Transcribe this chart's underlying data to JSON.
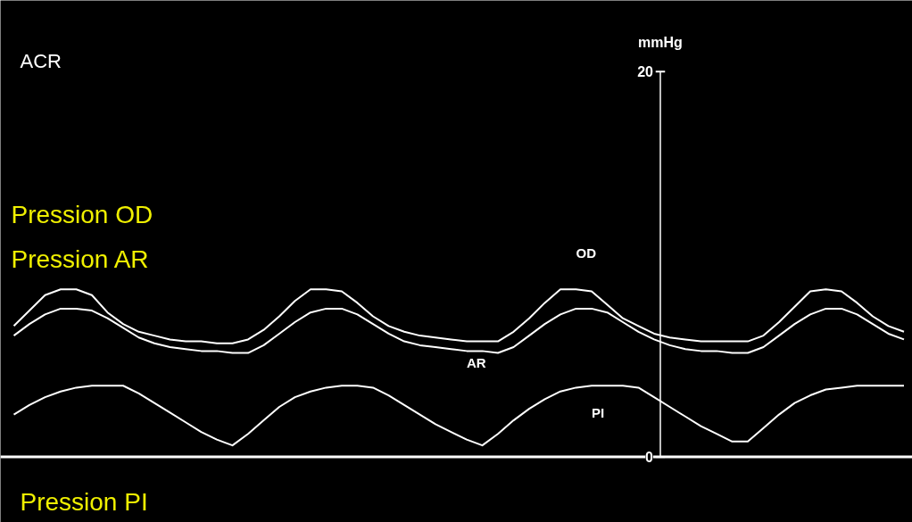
{
  "chart_data": {
    "type": "line",
    "ylabel": "mmHg",
    "categories": [
      null,
      null,
      null,
      null,
      null,
      null,
      null,
      null,
      null,
      null,
      null,
      null,
      null,
      null,
      null,
      null,
      null,
      null,
      null,
      null,
      null,
      null,
      null,
      null,
      null,
      null,
      null,
      null,
      null,
      null,
      null,
      null,
      null,
      null,
      null,
      null,
      null,
      null,
      null,
      null,
      null,
      null,
      null,
      null,
      null,
      null,
      null,
      null,
      null,
      null,
      null,
      null,
      null,
      null,
      null,
      null,
      null,
      null
    ],
    "ylim": [
      -3.4,
      23.7
    ],
    "yticks": [
      0,
      20
    ],
    "grid": false,
    "ref_lines": [
      {
        "axis": "y",
        "value": 0,
        "color": "#ffffff"
      }
    ],
    "annotations": [
      "ACR",
      "Pression OD",
      "Pression AR",
      "Pression PI"
    ],
    "series": [
      {
        "name": "OD",
        "color": "#ffffff",
        "values": [
          6.8,
          7.6,
          8.4,
          8.7,
          8.7,
          8.4,
          7.5,
          6.9,
          6.5,
          6.3,
          6.1,
          6.0,
          6.0,
          5.9,
          5.9,
          6.1,
          6.6,
          7.3,
          8.1,
          8.7,
          8.7,
          8.6,
          8.0,
          7.3,
          6.8,
          6.5,
          6.3,
          6.2,
          6.1,
          6.0,
          6.0,
          6.0,
          6.5,
          7.2,
          8.0,
          8.7,
          8.7,
          8.6,
          7.9,
          7.2,
          6.8,
          6.4,
          6.2,
          6.1,
          6.0,
          6.0,
          6.0,
          6.0,
          6.3,
          7.0,
          7.8,
          8.6,
          8.7,
          8.6,
          8.0,
          7.3,
          6.8,
          6.5
        ]
      },
      {
        "name": "AR",
        "color": "#ffffff",
        "values": [
          6.3,
          6.9,
          7.4,
          7.7,
          7.7,
          7.6,
          7.2,
          6.7,
          6.2,
          5.9,
          5.7,
          5.6,
          5.5,
          5.5,
          5.4,
          5.4,
          5.8,
          6.4,
          7.0,
          7.5,
          7.7,
          7.7,
          7.4,
          6.9,
          6.4,
          6.0,
          5.8,
          5.7,
          5.6,
          5.5,
          5.5,
          5.4,
          5.7,
          6.3,
          6.9,
          7.4,
          7.7,
          7.7,
          7.5,
          7.0,
          6.5,
          6.1,
          5.8,
          5.6,
          5.5,
          5.5,
          5.4,
          5.4,
          5.7,
          6.3,
          6.9,
          7.4,
          7.7,
          7.7,
          7.4,
          6.9,
          6.4,
          6.1
        ]
      },
      {
        "name": "PI",
        "color": "#ffffff",
        "values": [
          2.2,
          2.7,
          3.1,
          3.4,
          3.6,
          3.7,
          3.7,
          3.7,
          3.3,
          2.8,
          2.3,
          1.8,
          1.3,
          0.9,
          0.6,
          1.2,
          1.9,
          2.6,
          3.1,
          3.4,
          3.6,
          3.7,
          3.7,
          3.6,
          3.2,
          2.7,
          2.2,
          1.7,
          1.3,
          0.9,
          0.6,
          1.2,
          1.9,
          2.5,
          3.0,
          3.4,
          3.6,
          3.7,
          3.7,
          3.7,
          3.6,
          3.1,
          2.6,
          2.1,
          1.6,
          1.2,
          0.8,
          0.8,
          1.5,
          2.2,
          2.8,
          3.2,
          3.5,
          3.6,
          3.7,
          3.7,
          3.7,
          3.7
        ]
      }
    ]
  }
}
